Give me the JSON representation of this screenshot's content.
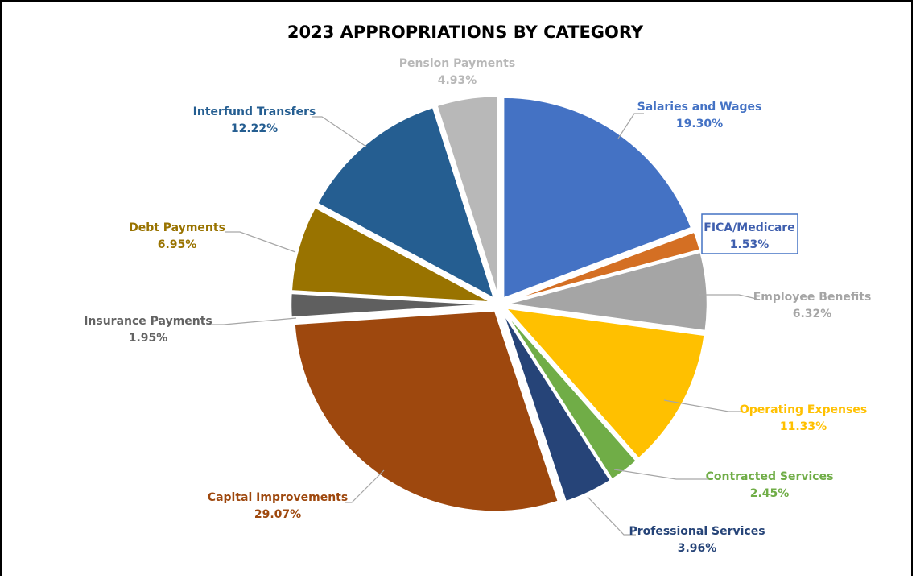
{
  "chart_data": {
    "type": "pie",
    "title": "2023 APPROPRIATIONS BY CATEGORY",
    "slices": [
      {
        "name": "Salaries and Wages",
        "value": 19.3,
        "label": "19.30%",
        "color": "#4472c4",
        "label_color": "#4472c4"
      },
      {
        "name": "FICA/Medicare",
        "value": 1.53,
        "label": "1.53%",
        "color": "#d46f23",
        "label_color": "#3f5fae"
      },
      {
        "name": "Employee Benefits",
        "value": 6.32,
        "label": "6.32%",
        "color": "#a5a5a5",
        "label_color": "#a5a5a5"
      },
      {
        "name": "Operating Expenses",
        "value": 11.33,
        "label": "11.33%",
        "color": "#ffc000",
        "label_color": "#ffc000"
      },
      {
        "name": "Contracted Services",
        "value": 2.45,
        "label": "2.45%",
        "color": "#70ad47",
        "label_color": "#70ad47"
      },
      {
        "name": "Professional Services",
        "value": 3.96,
        "label": "3.96%",
        "color": "#264478",
        "label_color": "#264478"
      },
      {
        "name": "Capital Improvements",
        "value": 29.07,
        "label": "29.07%",
        "color": "#9e480e",
        "label_color": "#9e480e"
      },
      {
        "name": "Insurance Payments",
        "value": 1.95,
        "label": "1.95%",
        "color": "#5f5f5f",
        "label_color": "#636363"
      },
      {
        "name": "Debt Payments",
        "value": 6.95,
        "label": "6.95%",
        "color": "#997300",
        "label_color": "#997300"
      },
      {
        "name": "Interfund Transfers",
        "value": 12.22,
        "label": "12.22%",
        "color": "#255e91",
        "label_color": "#255e91"
      },
      {
        "name": "Pension Payments",
        "value": 4.93,
        "label": "4.93%",
        "color": "#b8b8b8",
        "label_color": "#b8b8b8"
      }
    ],
    "leader_line_color": "#a6a6a6",
    "highlighted_label": "FICA/Medicare",
    "highlight_box_color": "#4472c4"
  }
}
